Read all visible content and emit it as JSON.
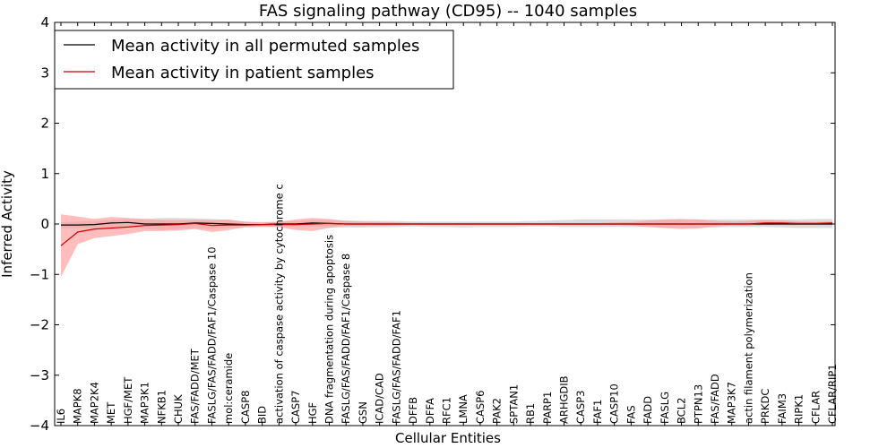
{
  "chart_data": {
    "type": "line",
    "title": "FAS signaling pathway (CD95) -- 1040 samples",
    "xlabel": "Cellular Entities",
    "ylabel": "Inferred Activity",
    "ylim": [
      -4,
      4
    ],
    "yticks": [
      -4,
      -3,
      -2,
      -1,
      0,
      1,
      2,
      3,
      4
    ],
    "ytick_labels": [
      "−4",
      "−3",
      "−2",
      "−1",
      "0",
      "1",
      "2",
      "3",
      "4"
    ],
    "legend_position": "top-left",
    "categories": [
      "IL6",
      "MAPK8",
      "MAP2K4",
      "MET",
      "HGF/MET",
      "MAP3K1",
      "NFKB1",
      "CHUK",
      "FAS/FADD/MET",
      "FASLG/FAS/FADD/FAF1/Caspase 10",
      "mol:ceramide",
      "CASP8",
      "BID",
      "activation of caspase activity by cytochrome c",
      "CASP7",
      "HGF",
      "DNA fragmentation during apoptosis",
      "FASLG/FAS/FADD/FAF1/Caspase 8",
      "GSN",
      "ICAD/CAD",
      "FASLG/FAS/FADD/FAF1",
      "DFFB",
      "DFFA",
      "RFC1",
      "LMNA",
      "CASP6",
      "PAK2",
      "SPTAN1",
      "RB1",
      "PARP1",
      "ARHGDIB",
      "CASP3",
      "FAF1",
      "CASP10",
      "FAS",
      "FADD",
      "FASLG",
      "BCL2",
      "PTPN13",
      "FAS/FADD",
      "MAP3K7",
      "actin filament polymerization",
      "PRKDC",
      "FAIM3",
      "RIPK1",
      "CFLAR",
      "CFLAR/RIP1"
    ],
    "series": [
      {
        "name": "Mean activity in all permuted samples",
        "color": "#000000",
        "band_color": "#bfbfbf",
        "values": [
          -0.02,
          -0.02,
          -0.01,
          0.02,
          0.03,
          0.0,
          0.0,
          0.0,
          0.02,
          0.01,
          0.0,
          -0.01,
          -0.01,
          0.0,
          0.0,
          0.02,
          0.01,
          0.0,
          0.0,
          0.0,
          0.0,
          0.0,
          0.0,
          0.0,
          0.0,
          0.0,
          0.0,
          0.0,
          0.0,
          0.0,
          0.0,
          0.0,
          0.0,
          0.0,
          0.0,
          0.0,
          0.0,
          0.0,
          0.0,
          0.0,
          0.0,
          0.0,
          0.0,
          0.0,
          0.0,
          0.0,
          0.0
        ],
        "lower": [
          -0.08,
          -0.08,
          -0.08,
          -0.06,
          -0.05,
          -0.1,
          -0.12,
          -0.1,
          -0.08,
          -0.1,
          -0.08,
          -0.07,
          -0.06,
          -0.06,
          -0.05,
          -0.05,
          -0.06,
          -0.07,
          -0.07,
          -0.06,
          -0.06,
          -0.05,
          -0.06,
          -0.06,
          -0.07,
          -0.06,
          -0.06,
          -0.06,
          -0.05,
          -0.05,
          -0.06,
          -0.06,
          -0.06,
          -0.06,
          -0.06,
          -0.06,
          -0.07,
          -0.07,
          -0.07,
          -0.07,
          -0.06,
          -0.06,
          -0.06,
          -0.07,
          -0.08,
          -0.08,
          -0.08
        ],
        "upper": [
          0.04,
          0.05,
          0.06,
          0.08,
          0.1,
          0.1,
          0.12,
          0.12,
          0.11,
          0.1,
          0.08,
          0.05,
          0.04,
          0.05,
          0.06,
          0.08,
          0.08,
          0.07,
          0.06,
          0.06,
          0.06,
          0.05,
          0.05,
          0.05,
          0.05,
          0.05,
          0.05,
          0.05,
          0.06,
          0.07,
          0.08,
          0.09,
          0.09,
          0.09,
          0.09,
          0.09,
          0.09,
          0.09,
          0.09,
          0.09,
          0.09,
          0.09,
          0.09,
          0.09,
          0.09,
          0.1,
          0.1
        ]
      },
      {
        "name": "Mean activity in patient samples",
        "color": "#cc0000",
        "band_color": "#ff9999",
        "values": [
          -0.43,
          -0.16,
          -0.1,
          -0.08,
          -0.06,
          -0.03,
          -0.02,
          -0.01,
          0.01,
          -0.03,
          -0.02,
          -0.02,
          -0.01,
          -0.01,
          -0.01,
          0.0,
          0.01,
          0.0,
          0.0,
          0.0,
          0.0,
          0.0,
          0.0,
          0.0,
          0.0,
          0.0,
          0.0,
          0.0,
          0.0,
          0.0,
          0.0,
          0.0,
          0.0,
          0.0,
          0.0,
          0.0,
          0.0,
          0.0,
          0.0,
          0.0,
          0.0,
          0.0,
          0.02,
          0.02,
          0.01,
          0.01,
          0.02
        ],
        "lower": [
          -1.05,
          -0.4,
          -0.28,
          -0.24,
          -0.2,
          -0.14,
          -0.14,
          -0.13,
          -0.1,
          -0.16,
          -0.12,
          -0.06,
          -0.05,
          -0.06,
          -0.12,
          -0.14,
          -0.08,
          -0.04,
          -0.04,
          -0.04,
          -0.03,
          -0.02,
          -0.02,
          -0.02,
          -0.02,
          -0.02,
          -0.02,
          -0.02,
          -0.02,
          -0.02,
          -0.02,
          -0.02,
          -0.02,
          -0.02,
          -0.03,
          -0.06,
          -0.08,
          -0.1,
          -0.09,
          -0.05,
          -0.03,
          -0.03,
          -0.02,
          -0.02,
          -0.02,
          -0.02,
          -0.02
        ],
        "upper": [
          0.19,
          0.15,
          0.1,
          0.14,
          0.12,
          0.1,
          0.08,
          0.08,
          0.08,
          0.08,
          0.09,
          0.04,
          0.03,
          0.04,
          0.09,
          0.12,
          0.1,
          0.06,
          0.05,
          0.04,
          0.03,
          0.02,
          0.02,
          0.02,
          0.02,
          0.02,
          0.02,
          0.02,
          0.02,
          0.02,
          0.02,
          0.02,
          0.02,
          0.03,
          0.04,
          0.07,
          0.09,
          0.1,
          0.09,
          0.06,
          0.05,
          0.06,
          0.08,
          0.07,
          0.05,
          0.04,
          0.05
        ]
      }
    ]
  }
}
